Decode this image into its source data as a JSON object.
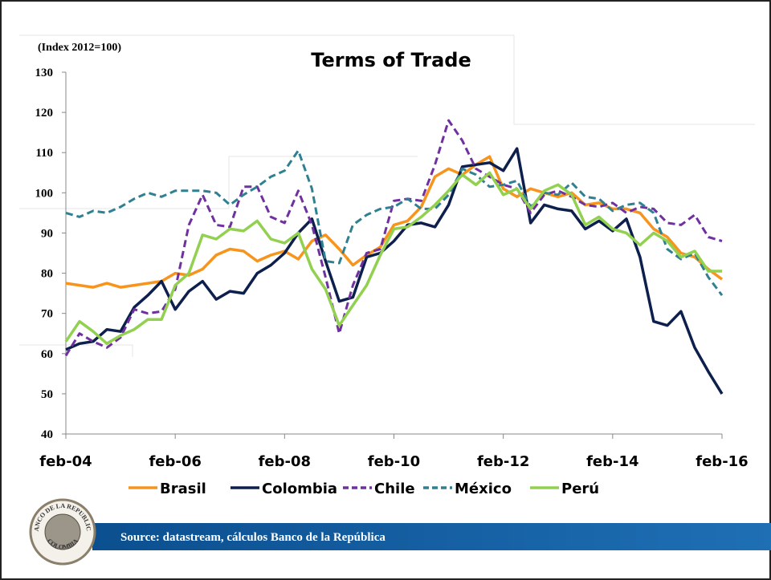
{
  "chart_data": {
    "type": "line",
    "title": "Terms of Trade",
    "y_label": "(Index 2012=100)",
    "source": "Source: datastream, cálculos Banco de la República",
    "logo_text": [
      "BANCO DE LA REPUBLICA",
      "COLOMBIA"
    ],
    "categories": [
      "feb-04",
      null,
      null,
      null,
      null,
      null,
      null,
      null,
      "feb-06",
      null,
      null,
      null,
      null,
      null,
      null,
      null,
      "feb-08",
      null,
      null,
      null,
      null,
      null,
      null,
      null,
      "feb-10",
      null,
      null,
      null,
      null,
      null,
      null,
      null,
      "feb-12",
      null,
      null,
      null,
      null,
      null,
      null,
      null,
      "feb-14",
      null,
      null,
      null,
      null,
      null,
      null,
      null,
      "feb-16"
    ],
    "ylim": [
      40,
      130
    ],
    "yticks": [
      40,
      50,
      60,
      70,
      80,
      90,
      100,
      110,
      120,
      130
    ],
    "legend": "bottom",
    "series": [
      {
        "name": "Brasil",
        "color": "#f7941d",
        "style": "solid",
        "values": [
          77.5,
          77,
          76.5,
          77.5,
          76.5,
          77,
          77.5,
          78,
          80,
          79.5,
          81,
          84.5,
          86,
          85.5,
          83,
          84.5,
          85.5,
          83.5,
          88,
          89.5,
          86,
          82,
          84.5,
          86.5,
          92,
          93,
          96.5,
          104,
          106,
          104.5,
          107,
          109,
          101,
          99,
          101,
          100,
          99,
          100,
          97,
          97.5,
          96,
          96,
          95,
          91,
          89,
          85,
          84,
          81,
          78.5
        ]
      },
      {
        "name": "Colombia",
        "color": "#0d1f4d",
        "style": "solid",
        "values": [
          61,
          62.5,
          63,
          66,
          65.5,
          71.5,
          74.5,
          78,
          71,
          75.5,
          78,
          73.5,
          75.5,
          75,
          80,
          82,
          85,
          90,
          93.5,
          83,
          73,
          74,
          84,
          85,
          88,
          92,
          92.5,
          91.5,
          97,
          106.5,
          107,
          107.5,
          105.5,
          111,
          92.5,
          97,
          96,
          95.5,
          91,
          93,
          90.5,
          93.5,
          84,
          68,
          67,
          70.5,
          61.5,
          55.5,
          50
        ]
      },
      {
        "name": "Chile",
        "color": "#7030a0",
        "style": "dashed",
        "values": [
          59.5,
          65,
          63,
          61.5,
          64,
          71,
          70,
          70.5,
          76,
          92,
          99.5,
          92,
          91.5,
          101.5,
          101.5,
          94,
          92.5,
          100.5,
          92,
          79,
          65,
          77,
          85,
          86,
          98,
          98.5,
          98,
          107,
          118,
          113,
          106,
          104,
          102,
          101,
          95,
          99.5,
          100.5,
          99,
          97,
          96.5,
          97.5,
          95,
          96.5,
          96,
          92.5,
          92,
          94.5,
          89,
          88
        ]
      },
      {
        "name": "México",
        "color": "#2f8090",
        "style": "dashed",
        "values": [
          95,
          94,
          95.5,
          95,
          96.5,
          98.5,
          100,
          99,
          100.5,
          100.5,
          100.5,
          100,
          97,
          99.5,
          101.5,
          104,
          105.5,
          110.5,
          101,
          83,
          82.5,
          92,
          94.5,
          96,
          96.5,
          98.5,
          96,
          96,
          99.5,
          106,
          104.5,
          101.5,
          102,
          103,
          96.5,
          100,
          99.5,
          102.5,
          99,
          98.5,
          95.5,
          97,
          97.5,
          95,
          86,
          83.5,
          85,
          79,
          74.5
        ]
      },
      {
        "name": "Perú",
        "color": "#92d050",
        "style": "solid",
        "values": [
          63,
          68,
          65.5,
          62.5,
          64.5,
          66,
          68.5,
          68.5,
          77,
          80,
          89.5,
          88.5,
          91,
          90.5,
          93,
          88.5,
          87.5,
          90,
          81,
          76,
          67,
          72,
          77,
          84.5,
          91,
          91.5,
          94,
          97,
          100.5,
          104.5,
          102,
          105,
          99.5,
          101,
          96,
          100.5,
          102,
          99.5,
          92,
          94,
          91,
          90,
          87,
          90,
          88,
          84,
          85.5,
          80.5,
          80.5
        ]
      }
    ]
  }
}
